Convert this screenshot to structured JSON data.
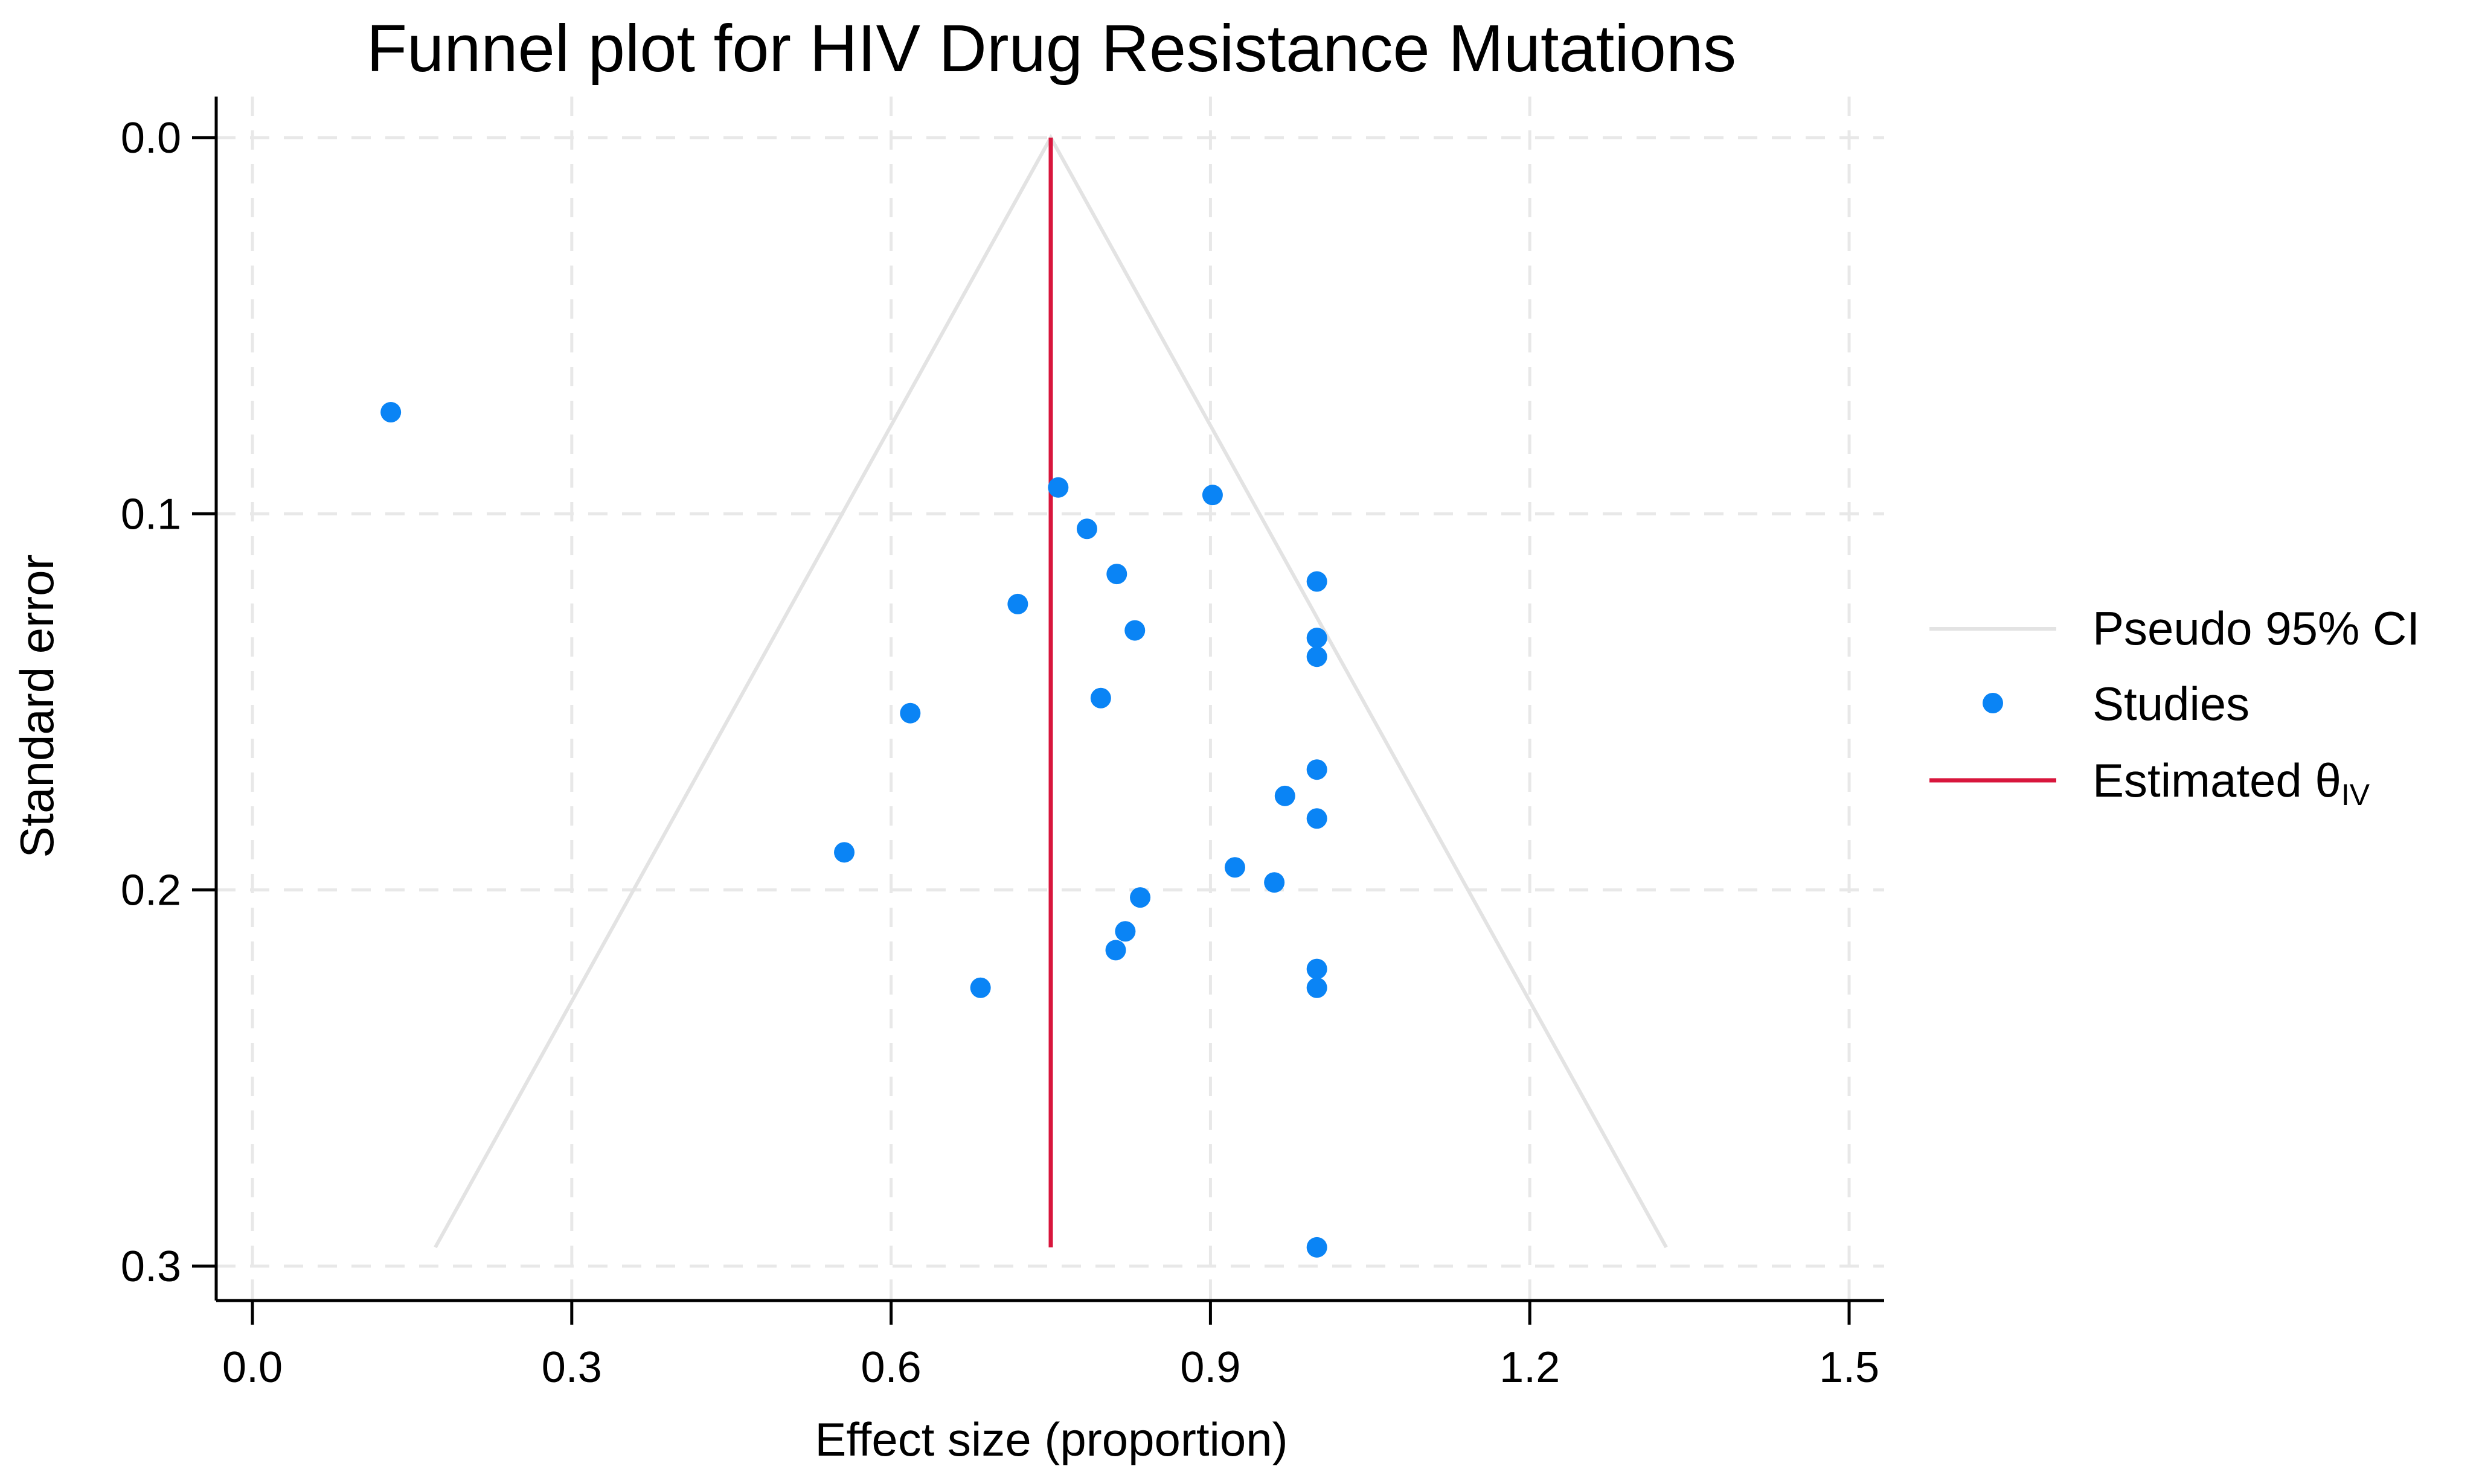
{
  "chart_data": {
    "type": "scatter",
    "title": "Funnel plot for HIV Drug Resistance Mutations",
    "xlabel": "Effect size (proportion)",
    "ylabel": "Standard error",
    "xlim": [
      0.0,
      1.5
    ],
    "ylim": [
      0.0,
      0.3
    ],
    "y_inverted": true,
    "grid": true,
    "x_ticks": [
      0.0,
      0.3,
      0.6,
      0.9,
      1.2,
      1.5
    ],
    "x_tick_labels": [
      "0.0",
      "0.3",
      "0.6",
      "0.9",
      "1.2",
      "1.5"
    ],
    "y_ticks": [
      0.0,
      0.1,
      0.2,
      0.3
    ],
    "y_tick_labels": [
      "0.0",
      "0.1",
      "0.2",
      "0.3"
    ],
    "estimate": 0.75,
    "se_max": 0.295,
    "legend_position": "right",
    "legend": {
      "ci_label": "Pseudo 95% CI",
      "studies_label": "Studies",
      "estimate_label": "Estimated θ",
      "estimate_subscript": "IV"
    },
    "colors": {
      "ci": "#e3e3e3",
      "studies": "#0a84f5",
      "estimate": "#d8163c",
      "grid": "#e8e8e8"
    },
    "series": [
      {
        "name": "Studies",
        "points": [
          {
            "x": 0.13,
            "y": 0.073
          },
          {
            "x": 0.757,
            "y": 0.093
          },
          {
            "x": 0.902,
            "y": 0.095
          },
          {
            "x": 0.784,
            "y": 0.104
          },
          {
            "x": 0.812,
            "y": 0.116
          },
          {
            "x": 1.0,
            "y": 0.118
          },
          {
            "x": 0.719,
            "y": 0.124
          },
          {
            "x": 0.829,
            "y": 0.131
          },
          {
            "x": 1.0,
            "y": 0.133
          },
          {
            "x": 1.0,
            "y": 0.138
          },
          {
            "x": 0.797,
            "y": 0.149
          },
          {
            "x": 0.618,
            "y": 0.153
          },
          {
            "x": 1.0,
            "y": 0.168
          },
          {
            "x": 0.97,
            "y": 0.175
          },
          {
            "x": 1.0,
            "y": 0.181
          },
          {
            "x": 0.556,
            "y": 0.19
          },
          {
            "x": 0.923,
            "y": 0.194
          },
          {
            "x": 0.96,
            "y": 0.198
          },
          {
            "x": 0.834,
            "y": 0.202
          },
          {
            "x": 0.82,
            "y": 0.211
          },
          {
            "x": 0.811,
            "y": 0.216
          },
          {
            "x": 1.0,
            "y": 0.221
          },
          {
            "x": 0.684,
            "y": 0.226
          },
          {
            "x": 1.0,
            "y": 0.226
          },
          {
            "x": 1.0,
            "y": 0.295
          }
        ]
      }
    ]
  }
}
